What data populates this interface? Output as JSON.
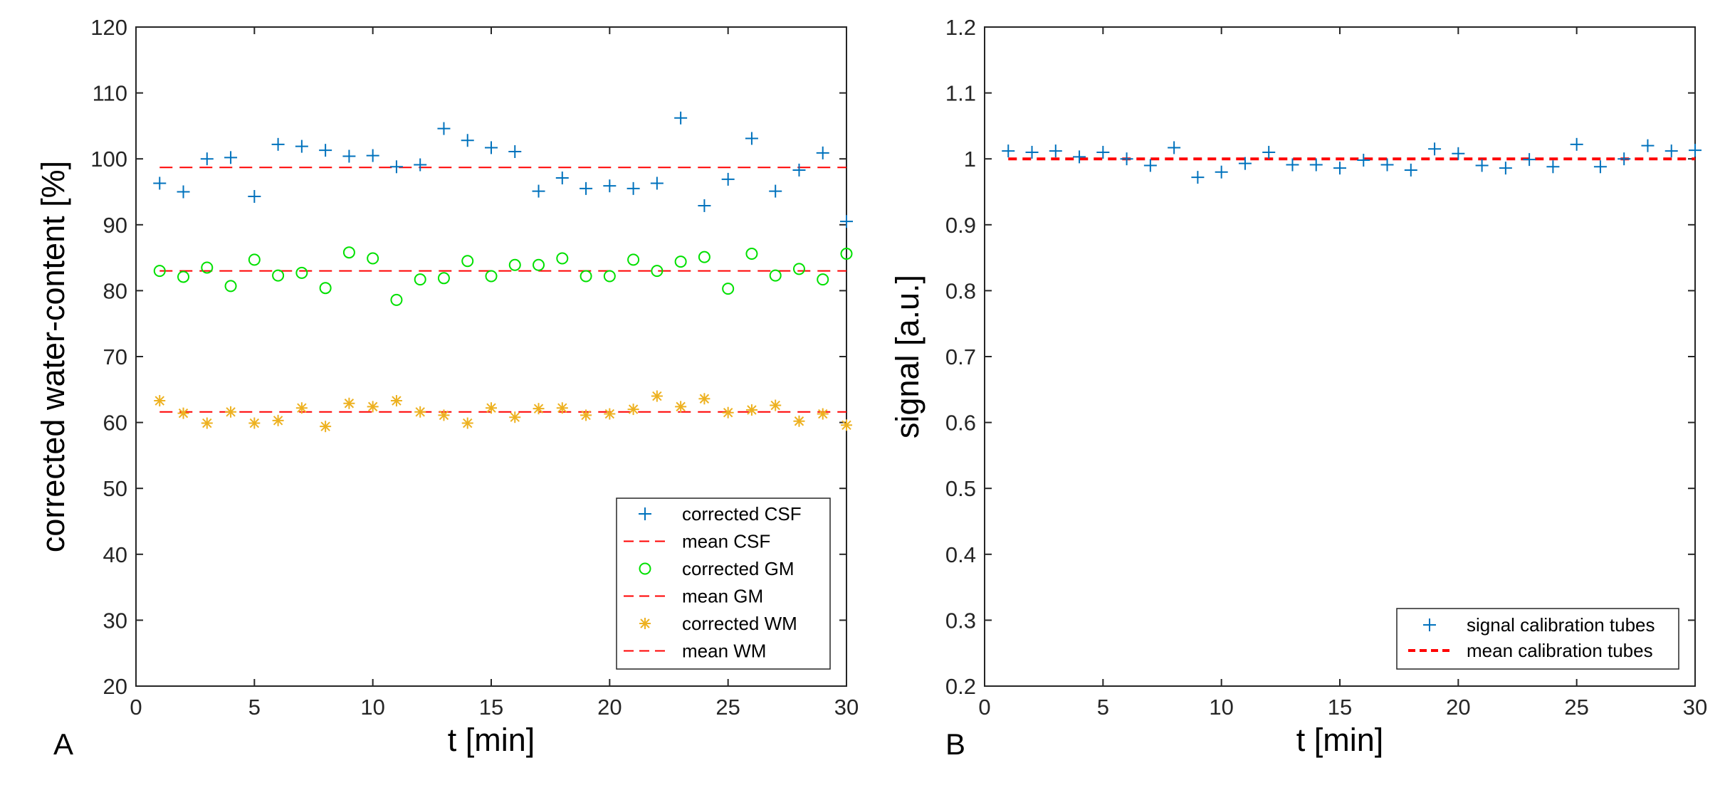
{
  "chart_data": [
    {
      "type": "scatter",
      "panel_label": "A",
      "xlabel": "t [min]",
      "ylabel": "corrected water-content [%]",
      "xlim": [
        0,
        30
      ],
      "ylim": [
        20,
        120
      ],
      "xticks": [
        0,
        5,
        10,
        15,
        20,
        25,
        30
      ],
      "yticks": [
        20,
        30,
        40,
        50,
        60,
        70,
        80,
        90,
        100,
        110,
        120
      ],
      "x": [
        1,
        2,
        3,
        4,
        5,
        6,
        7,
        8,
        9,
        10,
        11,
        12,
        13,
        14,
        15,
        16,
        17,
        18,
        19,
        20,
        21,
        22,
        23,
        24,
        25,
        26,
        27,
        28,
        29,
        30
      ],
      "series": [
        {
          "name": "corrected CSF",
          "marker": "plus",
          "color": "#0072BD",
          "values": [
            96.3,
            95.0,
            100.0,
            100.2,
            94.3,
            102.2,
            101.9,
            101.3,
            100.4,
            100.5,
            98.8,
            99.1,
            104.6,
            102.8,
            101.7,
            101.1,
            95.1,
            97.1,
            95.5,
            95.9,
            95.5,
            96.3,
            106.2,
            92.9,
            96.9,
            103.1,
            95.1,
            98.3,
            100.9,
            90.5
          ]
        },
        {
          "name": "mean CSF",
          "line": "dashed",
          "color": "#FF0000",
          "value": 98.7
        },
        {
          "name": "corrected GM",
          "marker": "circle",
          "color": "#00E000",
          "values": [
            83.0,
            82.1,
            83.5,
            80.7,
            84.7,
            82.3,
            82.7,
            80.4,
            85.8,
            84.9,
            78.6,
            81.7,
            81.9,
            84.5,
            82.2,
            83.9,
            83.9,
            84.9,
            82.2,
            82.2,
            84.7,
            83.0,
            84.4,
            85.1,
            80.3,
            85.6,
            82.3,
            83.3,
            81.7,
            85.6
          ]
        },
        {
          "name": "mean GM",
          "line": "dashed",
          "color": "#FF0000",
          "value": 83.0
        },
        {
          "name": "corrected WM",
          "marker": "asterisk",
          "color": "#EDB120",
          "values": [
            63.3,
            61.4,
            59.9,
            61.6,
            59.9,
            60.3,
            62.2,
            59.4,
            62.9,
            62.4,
            63.3,
            61.6,
            61.1,
            59.9,
            62.2,
            60.8,
            62.1,
            62.2,
            61.1,
            61.3,
            62.0,
            64.0,
            62.4,
            63.6,
            61.5,
            61.9,
            62.6,
            60.2,
            61.3,
            59.6
          ]
        },
        {
          "name": "mean WM",
          "line": "dashed",
          "color": "#FF0000",
          "value": 61.6
        }
      ],
      "legend_position": "bottom-right"
    },
    {
      "type": "scatter",
      "panel_label": "B",
      "xlabel": "t [min]",
      "ylabel": "signal [a.u.]",
      "xlim": [
        0,
        30
      ],
      "ylim": [
        0.2,
        1.2
      ],
      "xticks": [
        0,
        5,
        10,
        15,
        20,
        25,
        30
      ],
      "yticks": [
        0.2,
        0.3,
        0.4,
        0.5,
        0.6,
        0.7,
        0.8,
        0.9,
        1,
        1.1,
        1.2
      ],
      "x": [
        1,
        2,
        3,
        4,
        5,
        6,
        7,
        8,
        9,
        10,
        11,
        12,
        13,
        14,
        15,
        16,
        17,
        18,
        19,
        20,
        21,
        22,
        23,
        24,
        25,
        26,
        27,
        28,
        29,
        30
      ],
      "series": [
        {
          "name": "signal calibration tubes",
          "marker": "plus",
          "color": "#0072BD",
          "values": [
            1.012,
            1.01,
            1.012,
            1.003,
            1.01,
            1.0,
            0.99,
            1.017,
            0.972,
            0.98,
            0.993,
            1.01,
            0.991,
            0.991,
            0.986,
            0.998,
            0.991,
            0.983,
            1.015,
            1.008,
            0.99,
            0.986,
            0.999,
            0.988,
            1.022,
            0.988,
            1.0,
            1.02,
            1.012,
            1.013
          ]
        },
        {
          "name": "mean calibration tubes",
          "line": "dashed-bold",
          "color": "#FF0000",
          "value": 1.0
        }
      ],
      "legend_position": "bottom-right"
    }
  ]
}
